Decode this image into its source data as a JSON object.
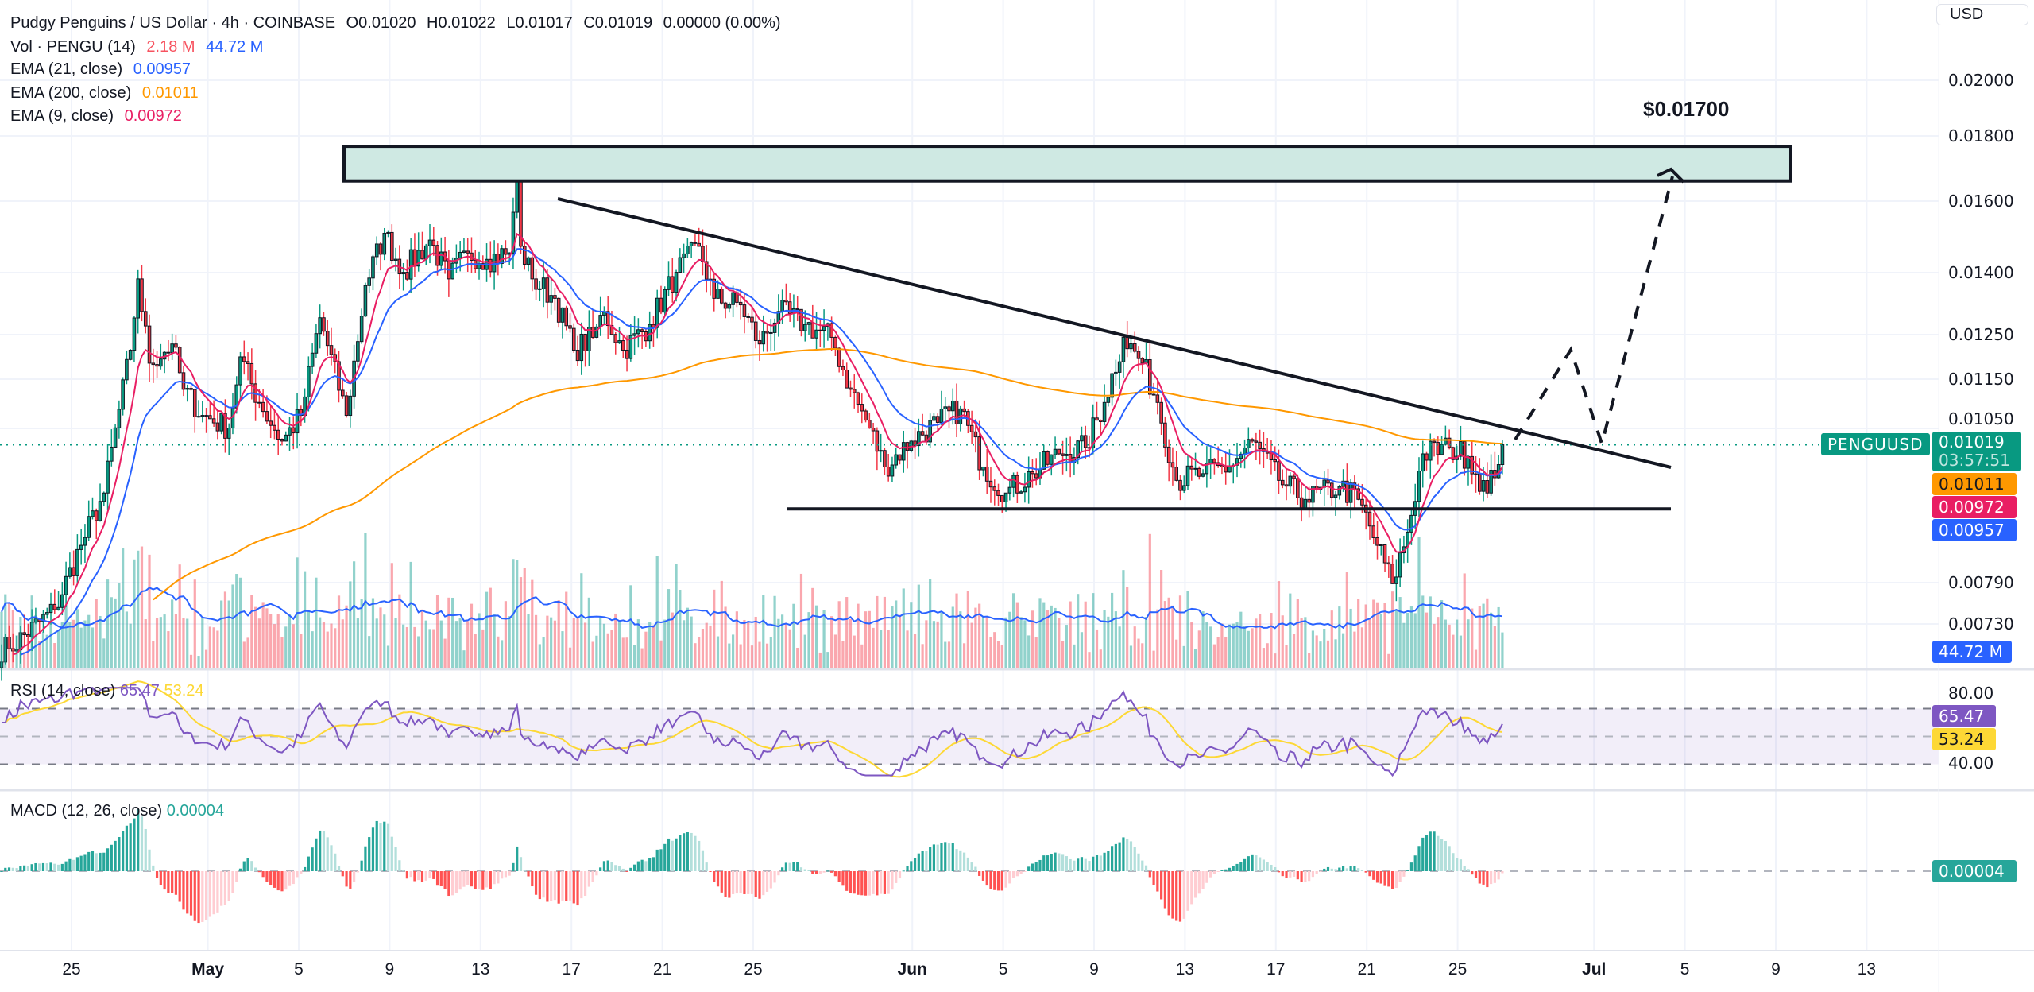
{
  "header": {
    "symbol_line": "Pudgy Penguins / US Dollar · 4h · COINBASE",
    "open": "O0.01020",
    "high": "H0.01022",
    "low": "L0.01017",
    "close": "C0.01019",
    "change": "0.00000 (0.00%)"
  },
  "indicators": {
    "vol": {
      "label": "Vol · PENGU (14)",
      "value": "2.18 M",
      "ma": "44.72 M"
    },
    "ema21": {
      "label": "EMA (21, close)",
      "value": "0.00957"
    },
    "ema200": {
      "label": "EMA (200, close)",
      "value": "0.01011"
    },
    "ema9": {
      "label": "EMA (9, close)",
      "value": "0.00972"
    },
    "rsi": {
      "label": "RSI (14, close)",
      "value": "65.47",
      "ma": "53.24"
    },
    "macd": {
      "label": "MACD (12, 26, close)",
      "value": "0.00004"
    }
  },
  "currency_button": "USD",
  "price_axis": [
    "0.02000",
    "0.01800",
    "0.01600",
    "0.01400",
    "0.01250",
    "0.01150",
    "0.01050",
    "0.00790",
    "0.00730"
  ],
  "rsi_axis": [
    "80.00",
    "40.00"
  ],
  "tags": {
    "symbol": "PENGUUSD",
    "price": "0.01019",
    "countdown": "03:57:51",
    "ema200": "0.01011",
    "ema9": "0.00972",
    "ema21": "0.00957",
    "volume_ma": "44.72 M",
    "rsi": "65.47",
    "rsi_ma": "53.24",
    "macd": "0.00004"
  },
  "date_axis": [
    {
      "label": "25",
      "day": 3
    },
    {
      "label": "May",
      "day": 9,
      "bold": true
    },
    {
      "label": "5",
      "day": 13
    },
    {
      "label": "9",
      "day": 17
    },
    {
      "label": "13",
      "day": 21
    },
    {
      "label": "17",
      "day": 25
    },
    {
      "label": "21",
      "day": 29
    },
    {
      "label": "25",
      "day": 33
    },
    {
      "label": "Jun",
      "day": 40,
      "bold": true
    },
    {
      "label": "5",
      "day": 44
    },
    {
      "label": "9",
      "day": 48
    },
    {
      "label": "13",
      "day": 52
    },
    {
      "label": "17",
      "day": 56
    },
    {
      "label": "21",
      "day": 60
    },
    {
      "label": "25",
      "day": 64
    },
    {
      "label": "Jul",
      "day": 70,
      "bold": true
    },
    {
      "label": "5",
      "day": 74
    },
    {
      "label": "9",
      "day": 78
    },
    {
      "label": "13",
      "day": 82
    }
  ],
  "annotations": {
    "target_label": "$0.01700",
    "resistance_zone": [
      0.0166,
      0.0177
    ],
    "support_price": 0.00905,
    "current_price": 0.01019
  },
  "colors": {
    "up": "#089981",
    "down": "#f23645",
    "ema9": "#e91e63",
    "ema21": "#2962ff",
    "ema200": "#ff9800",
    "rsi": "#7e57c2",
    "rsi_ma": "#fdd835",
    "zone": "#cfe9e3"
  },
  "chart_data": {
    "type": "candlestick",
    "interval": "4h",
    "price_keypoints": [
      [
        2,
        0.00699
      ],
      [
        14,
        0.00751
      ],
      [
        21,
        0.00846
      ],
      [
        27,
        0.00932
      ],
      [
        34,
        0.01214
      ],
      [
        36,
        0.01385
      ],
      [
        39,
        0.01185
      ],
      [
        45,
        0.01228
      ],
      [
        48,
        0.01129
      ],
      [
        53,
        0.01076
      ],
      [
        60,
        0.01051
      ],
      [
        63,
        0.01199
      ],
      [
        68,
        0.01102
      ],
      [
        74,
        0.01026
      ],
      [
        79,
        0.01076
      ],
      [
        84,
        0.01289
      ],
      [
        91,
        0.01076
      ],
      [
        96,
        0.01368
      ],
      [
        101,
        0.01507
      ],
      [
        106,
        0.01402
      ],
      [
        113,
        0.01488
      ],
      [
        118,
        0.01385
      ],
      [
        123,
        0.01453
      ],
      [
        128,
        0.01436
      ],
      [
        134,
        0.01453
      ],
      [
        136,
        0.01658
      ],
      [
        137,
        0.01471
      ],
      [
        140,
        0.01385
      ],
      [
        146,
        0.01336
      ],
      [
        151,
        0.01214
      ],
      [
        156,
        0.01243
      ],
      [
        159,
        0.01304
      ],
      [
        164,
        0.01214
      ],
      [
        171,
        0.01273
      ],
      [
        178,
        0.01402
      ],
      [
        184,
        0.01471
      ],
      [
        188,
        0.01336
      ],
      [
        195,
        0.0132
      ],
      [
        200,
        0.01228
      ],
      [
        205,
        0.01304
      ],
      [
        212,
        0.01273
      ],
      [
        219,
        0.01243
      ],
      [
        224,
        0.01129
      ],
      [
        229,
        0.01051
      ],
      [
        233,
        0.00978
      ],
      [
        240,
        0.01026
      ],
      [
        247,
        0.01062
      ],
      [
        253,
        0.01089
      ],
      [
        259,
        0.00978
      ],
      [
        265,
        0.00932
      ],
      [
        272,
        0.00966
      ],
      [
        279,
        0.01002
      ],
      [
        286,
        0.01014
      ],
      [
        291,
        0.01102
      ],
      [
        296,
        0.01243
      ],
      [
        301,
        0.01185
      ],
      [
        305,
        0.01102
      ],
      [
        310,
        0.00954
      ],
      [
        317,
        0.00966
      ],
      [
        324,
        0.00978
      ],
      [
        330,
        0.01026
      ],
      [
        337,
        0.00954
      ],
      [
        344,
        0.00921
      ],
      [
        353,
        0.00943
      ],
      [
        358,
        0.00921
      ],
      [
        363,
        0.00846
      ],
      [
        367,
        0.00788
      ],
      [
        371,
        0.00867
      ],
      [
        375,
        0.01002
      ],
      [
        382,
        0.01014
      ],
      [
        387,
        0.00997
      ],
      [
        392,
        0.00932
      ],
      [
        396,
        0.01019
      ]
    ],
    "ylim": [
      0.0068,
      0.0205
    ],
    "yscale": "log"
  }
}
